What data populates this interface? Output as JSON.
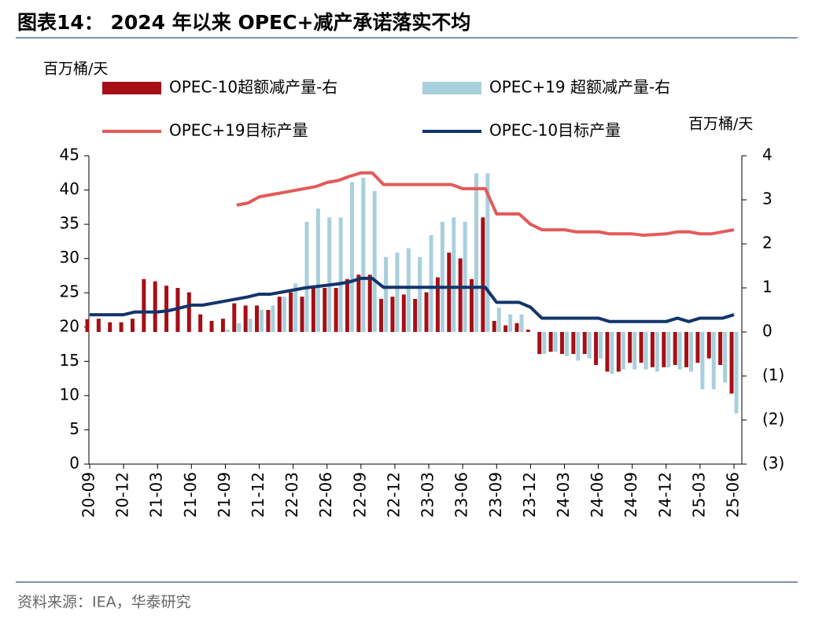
{
  "chart_data": {
    "type": "bar",
    "title": "图表14： 2024 年以来 OPEC+减产承诺落实不均",
    "y_unit": "百万桶/天",
    "y2_unit": "百万桶/天",
    "source": "资料来源：IEA，华泰研究",
    "categories": [
      "20-09",
      null,
      null,
      "20-12",
      null,
      null,
      "21-03",
      null,
      null,
      "21-06",
      null,
      null,
      "21-09",
      null,
      null,
      "21-12",
      null,
      null,
      "22-03",
      null,
      null,
      "22-06",
      null,
      null,
      "22-09",
      null,
      null,
      "22-12",
      null,
      null,
      "23-03",
      null,
      null,
      "23-06",
      null,
      null,
      "23-09",
      null,
      null,
      "23-12",
      null,
      null,
      "24-03",
      null,
      null,
      "24-06",
      null,
      null,
      "24-09",
      null,
      null,
      "24-12",
      null,
      null,
      "25-03",
      null,
      null,
      "25-06"
    ],
    "ylim": [
      0,
      45
    ],
    "yticks": [
      0,
      5,
      10,
      15,
      20,
      25,
      30,
      35,
      40,
      45
    ],
    "y2lim": [
      -3,
      4
    ],
    "y2ticks": [
      {
        "value": -3,
        "label": "(3)"
      },
      {
        "value": -2,
        "label": "(2)"
      },
      {
        "value": -1,
        "label": "(1)"
      },
      0,
      1,
      2,
      3,
      4
    ],
    "series": [
      {
        "name": "OPEC-10超额减产量-右",
        "type": "bar",
        "axis": "y2",
        "color": "#a50f15",
        "values": [
          0.29,
          0.3,
          0.22,
          0.22,
          0.3,
          1.2,
          1.15,
          1.05,
          1.0,
          0.9,
          0.4,
          0.25,
          0.3,
          0.65,
          0.6,
          0.6,
          0.5,
          0.8,
          0.9,
          0.8,
          1.0,
          1.0,
          1.0,
          1.2,
          1.3,
          1.3,
          0.75,
          0.8,
          0.85,
          0.75,
          0.9,
          1.24,
          1.8,
          1.67,
          1.2,
          2.6,
          0.25,
          0.15,
          0.2,
          0.05,
          -0.5,
          -0.45,
          -0.5,
          -0.5,
          -0.5,
          -0.75,
          -0.9,
          -0.9,
          -0.7,
          -0.7,
          -0.8,
          -0.8,
          -0.75,
          -0.8,
          -0.7,
          -0.6,
          -0.75,
          -1.4
        ]
      },
      {
        "name": "OPEC+19 超额减产量-右",
        "type": "bar",
        "axis": "y2",
        "color": "#a9cfdc",
        "values": [
          null,
          null,
          null,
          null,
          null,
          null,
          null,
          null,
          null,
          null,
          null,
          null,
          0.05,
          0.2,
          0.3,
          0.5,
          0.6,
          0.8,
          1.1,
          2.5,
          2.8,
          2.6,
          2.6,
          3.4,
          3.5,
          3.2,
          1.7,
          1.8,
          1.9,
          1.7,
          2.2,
          2.5,
          2.6,
          2.5,
          3.6,
          3.6,
          0.55,
          0.4,
          0.4,
          0.0,
          -0.5,
          -0.45,
          -0.55,
          -0.65,
          -0.6,
          -0.6,
          -0.95,
          -0.85,
          -0.85,
          -0.85,
          -0.9,
          -0.8,
          -0.85,
          -0.9,
          -1.3,
          -1.3,
          -1.15,
          -1.85
        ]
      },
      {
        "name": "OPEC+19目标产量",
        "type": "line",
        "color": "#e45a5a",
        "values": [
          null,
          null,
          null,
          null,
          null,
          null,
          null,
          null,
          null,
          null,
          null,
          null,
          null,
          37.8,
          38.1,
          39.0,
          39.3,
          39.6,
          39.9,
          40.2,
          40.5,
          41.1,
          41.4,
          42.0,
          42.5,
          42.5,
          40.8,
          40.8,
          40.8,
          40.8,
          40.8,
          40.8,
          40.8,
          40.2,
          40.2,
          40.2,
          36.5,
          36.5,
          36.5,
          35.0,
          34.2,
          34.2,
          34.2,
          33.9,
          33.9,
          33.9,
          33.6,
          33.6,
          33.6,
          33.4,
          33.5,
          33.6,
          33.9,
          33.9,
          33.6,
          33.6,
          33.9,
          34.2
        ]
      },
      {
        "name": "OPEC-10目标产量",
        "type": "line",
        "color": "#12346b",
        "values": [
          21.8,
          21.8,
          21.8,
          21.8,
          22.2,
          22.2,
          22.2,
          22.4,
          22.8,
          23.2,
          23.2,
          23.5,
          23.8,
          24.1,
          24.4,
          24.8,
          24.8,
          25.1,
          25.4,
          25.7,
          25.9,
          26.1,
          26.3,
          26.6,
          27.1,
          27.1,
          25.8,
          25.8,
          25.8,
          25.8,
          25.8,
          25.8,
          25.8,
          25.8,
          25.8,
          25.8,
          23.6,
          23.6,
          23.6,
          22.9,
          21.3,
          21.3,
          21.3,
          21.3,
          21.3,
          21.3,
          20.8,
          20.8,
          20.8,
          20.8,
          20.8,
          20.8,
          21.3,
          20.8,
          21.3,
          21.3,
          21.3,
          21.8
        ]
      }
    ]
  }
}
